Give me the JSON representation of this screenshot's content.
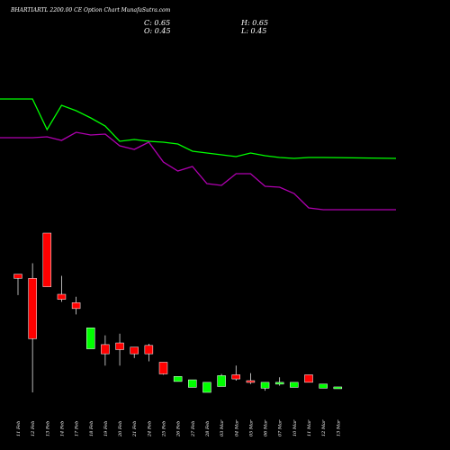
{
  "header": {
    "title": "BHARTIARTL 2200.00 CE Option Chart MunafaSutra.com",
    "c_label": "C: 0.65",
    "h_label": "H: 0.65",
    "o_label": "O: 0.45",
    "l_label": "L: 0.45"
  },
  "colors": {
    "background": "#000000",
    "up": "#00ff00",
    "down": "#ff0000",
    "wick": "#ffffff",
    "line_green": "#00ff00",
    "line_magenta": "#b000b0"
  },
  "chart_data": {
    "type": "candlestick",
    "title": "BHARTIARTL 2200.00 CE Option Chart MunafaSutra.com",
    "categories": [
      "11 Feb",
      "12 Feb",
      "13 Feb",
      "14 Feb",
      "17 Feb",
      "18 Feb",
      "19 Feb",
      "20 Feb",
      "21 Feb",
      "24 Feb",
      "25 Feb",
      "26 Feb",
      "27 Feb",
      "28 Feb",
      "03 Mar",
      "04 Mar",
      "05 Mar",
      "06 Mar",
      "07 Mar",
      "10 Mar",
      "11 Mar",
      "12 Mar",
      "13 Mar"
    ],
    "x_tick_labels": [
      "11 Feb",
      "12 Feb",
      "13 Feb",
      "14 Feb",
      "17 Feb",
      "18 Feb",
      "19 Feb",
      "20 Feb",
      "21 Feb",
      "24 Feb",
      "25 Feb",
      "26 Feb",
      "27 Feb",
      "28 Feb",
      "03 Mar",
      "04 Mar",
      "05 Mar",
      "06 Mar",
      "07 Mar",
      "10 Mar",
      "11 Mar",
      "12 Mar",
      "13 Mar"
    ],
    "candles": [
      {
        "open": 14.1,
        "high": 14.1,
        "low": 11.6,
        "close": 13.6
      },
      {
        "open": 13.6,
        "high": 15.4,
        "low": 0.0,
        "close": 6.4
      },
      {
        "open": 19.0,
        "high": 19.0,
        "low": 12.6,
        "close": 12.6
      },
      {
        "open": 11.7,
        "high": 13.9,
        "low": 10.8,
        "close": 11.1
      },
      {
        "open": 10.7,
        "high": 11.4,
        "low": 9.3,
        "close": 10.0
      },
      {
        "open": 5.2,
        "high": 7.7,
        "low": 5.2,
        "close": 7.7
      },
      {
        "open": 5.7,
        "high": 6.8,
        "low": 3.2,
        "close": 4.6
      },
      {
        "open": 5.9,
        "high": 7.0,
        "low": 3.2,
        "close": 5.1
      },
      {
        "open": 5.4,
        "high": 5.4,
        "low": 4.1,
        "close": 4.6
      },
      {
        "open": 5.6,
        "high": 5.8,
        "low": 3.7,
        "close": 4.6
      },
      {
        "open": 3.6,
        "high": 3.6,
        "low": 2.1,
        "close": 2.2
      },
      {
        "open": 1.3,
        "high": 1.9,
        "low": 1.3,
        "close": 1.9
      },
      {
        "open": 0.6,
        "high": 1.5,
        "low": 0.6,
        "close": 1.5
      },
      {
        "open": 0.0,
        "high": 1.2,
        "low": 0.0,
        "close": 1.2
      },
      {
        "open": 0.7,
        "high": 2.2,
        "low": 0.7,
        "close": 2.0
      },
      {
        "open": 2.1,
        "high": 3.2,
        "low": 1.4,
        "close": 1.6
      },
      {
        "open": 1.4,
        "high": 2.3,
        "low": 1.0,
        "close": 1.2
      },
      {
        "open": 0.5,
        "high": 1.2,
        "low": 0.2,
        "close": 1.2
      },
      {
        "open": 1.1,
        "high": 1.8,
        "low": 0.8,
        "close": 1.2
      },
      {
        "open": 0.6,
        "high": 1.2,
        "low": 0.6,
        "close": 1.2
      },
      {
        "open": 2.1,
        "high": 2.1,
        "low": 1.2,
        "close": 1.2
      },
      {
        "open": 0.5,
        "high": 1.0,
        "low": 0.5,
        "close": 1.0
      },
      {
        "open": 0.45,
        "high": 0.65,
        "low": 0.45,
        "close": 0.65
      }
    ],
    "series": [
      {
        "values": [
          110,
          110,
          144,
          117,
          123,
          131,
          140,
          157,
          155,
          157,
          158,
          160,
          168,
          170,
          172,
          174,
          170,
          173,
          175,
          176,
          175,
          175,
          176
        ]
      },
      {
        "values": [
          153,
          153,
          152,
          156,
          147,
          150,
          149,
          162,
          166,
          158,
          180,
          190,
          185,
          204,
          206,
          193,
          193,
          207,
          208,
          215,
          231,
          233,
          233
        ]
      }
    ],
    "grid": false,
    "legend": "none"
  }
}
